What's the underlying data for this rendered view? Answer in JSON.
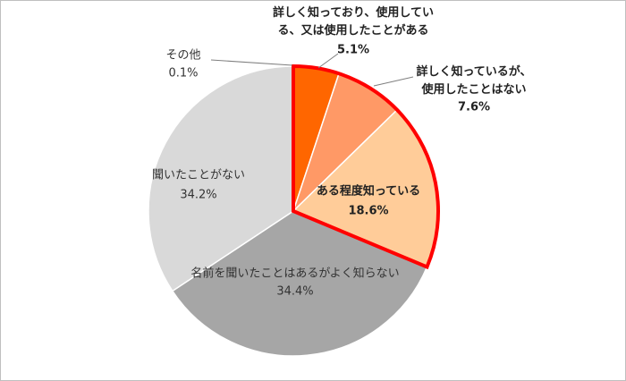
{
  "chart_data": {
    "type": "pie",
    "categories": [
      "詳しく知っており、使用してい\nる、又は使用したことがある",
      "詳しく知っているが、\n使用したことはない",
      "ある程度知っている",
      "名前を聞いたことはあるがよく知らない",
      "聞いたことがない",
      "その他"
    ],
    "values": [
      5.1,
      7.6,
      18.6,
      34.4,
      34.2,
      0.1
    ],
    "value_labels": [
      "5.1%",
      "7.6%",
      "18.6%",
      "34.4%",
      "34.2%",
      "0.1%"
    ],
    "colors": [
      "#ff6600",
      "#ff9966",
      "#ffcc99",
      "#a6a6a6",
      "#d9d9d9",
      "#d9d9d9"
    ]
  }
}
